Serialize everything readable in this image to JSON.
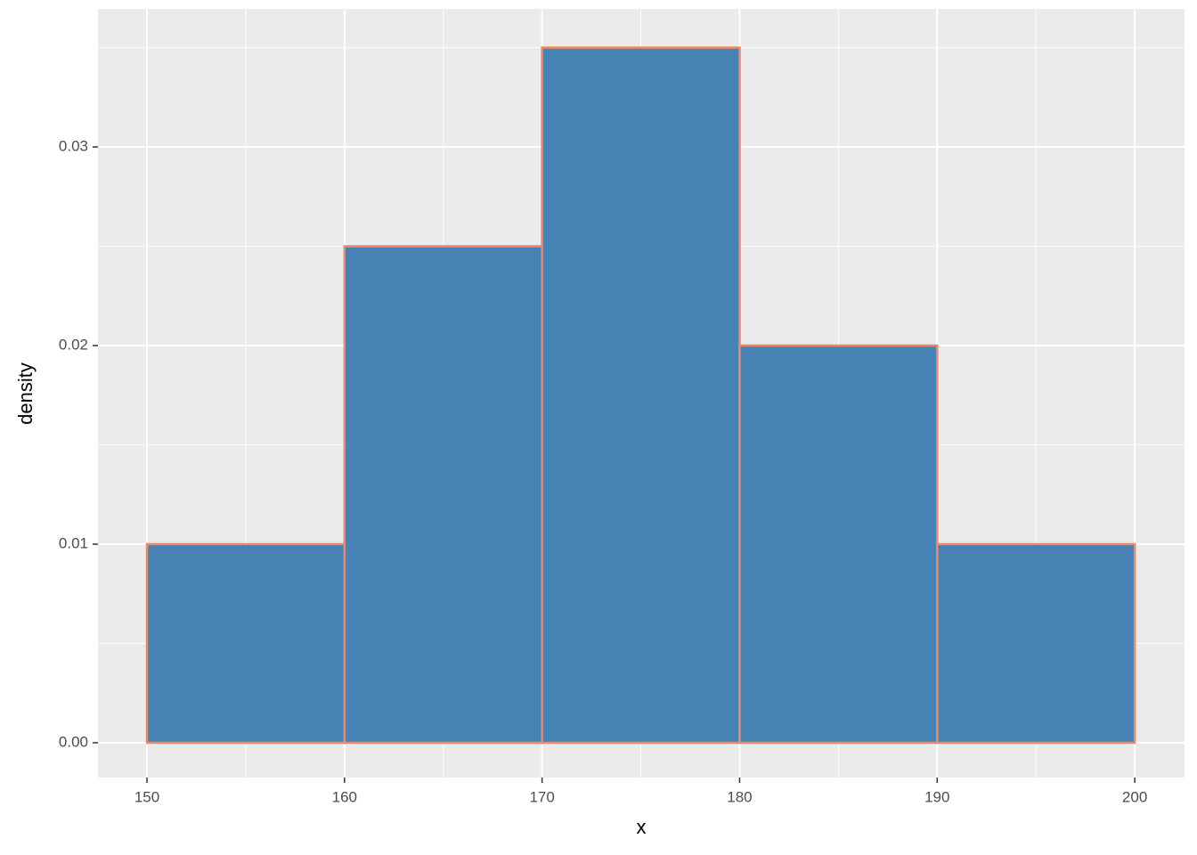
{
  "chart_data": {
    "type": "histogram",
    "x_label": "x",
    "y_label": "density",
    "bins": [
      150,
      160,
      170,
      180,
      190,
      200
    ],
    "values": [
      0.01,
      0.025,
      0.035,
      0.02,
      0.01
    ],
    "color": "#4682b4",
    "edgecolor": "#f08763",
    "xlim": [
      147.52,
      202.52
    ],
    "ylim": [
      -0.00175,
      0.03695
    ],
    "xticks": [
      150,
      160,
      170,
      180,
      190,
      200
    ],
    "yticks": [
      {
        "value": 0,
        "label": "0.00"
      },
      0.01,
      0.02,
      0.03
    ],
    "x_minor_ticks": [
      155,
      165,
      175,
      185,
      195
    ],
    "y_minor_ticks": [
      0.005,
      0.015,
      0.025,
      0.035
    ],
    "grid": true
  }
}
